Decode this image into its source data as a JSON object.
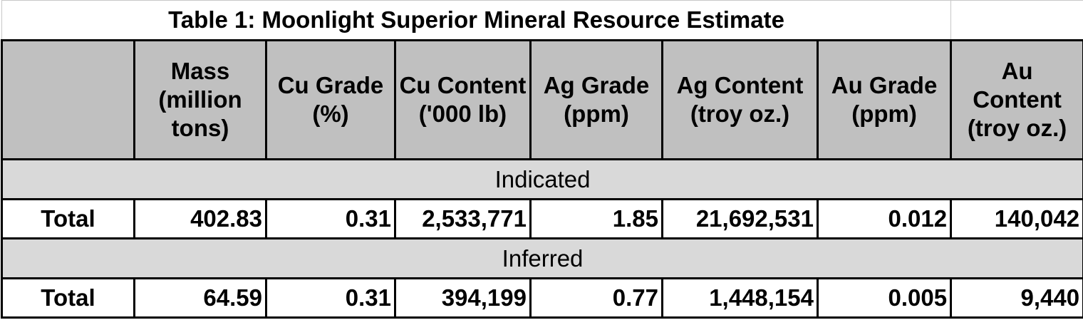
{
  "title": "Table 1: Moonlight Superior Mineral Resource Estimate",
  "table": {
    "header": [
      "Mass (million tons)",
      "Cu Grade (%)",
      "Cu Content ('000 lb)",
      "Ag Grade (ppm)",
      "Ag Content (troy oz.)",
      "Au Grade (ppm)",
      "Au Content (troy oz.)"
    ],
    "sections": [
      {
        "label": "Indicated",
        "row": {
          "label": "Total",
          "cells": [
            "402.83",
            "0.31",
            "2,533,771",
            "1.85",
            "21,692,531",
            "0.012",
            "140,042"
          ]
        }
      },
      {
        "label": "Inferred",
        "row": {
          "label": "Total",
          "cells": [
            "64.59",
            "0.31",
            "394,199",
            "0.77",
            "1,448,154",
            "0.005",
            "9,440"
          ]
        }
      }
    ]
  }
}
